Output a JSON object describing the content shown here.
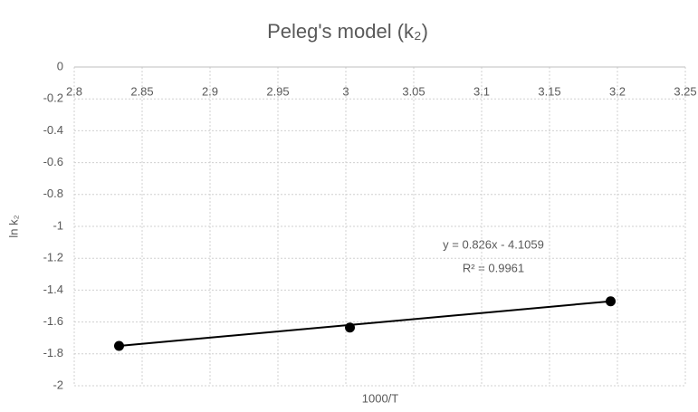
{
  "chart_data": {
    "type": "scatter",
    "title": "Peleg's model (k₂)",
    "x_label": "1000/T",
    "y_label": "ln k₂",
    "series": [
      {
        "name": "ln k₂",
        "color": "#000000",
        "x": [
          2.833,
          3.003,
          3.195
        ],
        "values": [
          -1.75,
          -1.635,
          -1.47
        ]
      }
    ],
    "trendline": true,
    "annotations": [
      "y = 0.826x - 4.1059",
      "R² = 0.9961"
    ],
    "xlim": [
      2.8,
      3.25
    ],
    "xticks": [
      2.8,
      2.85,
      2.9,
      2.95,
      3,
      3.05,
      3.1,
      3.15,
      3.2,
      3.25
    ],
    "ylim": [
      -2,
      0
    ],
    "yticks": [
      0,
      -0.2,
      -0.4,
      -0.6,
      -0.8,
      -1,
      -1.2,
      -1.4,
      -1.6,
      -1.8,
      -2
    ],
    "grid": true
  }
}
